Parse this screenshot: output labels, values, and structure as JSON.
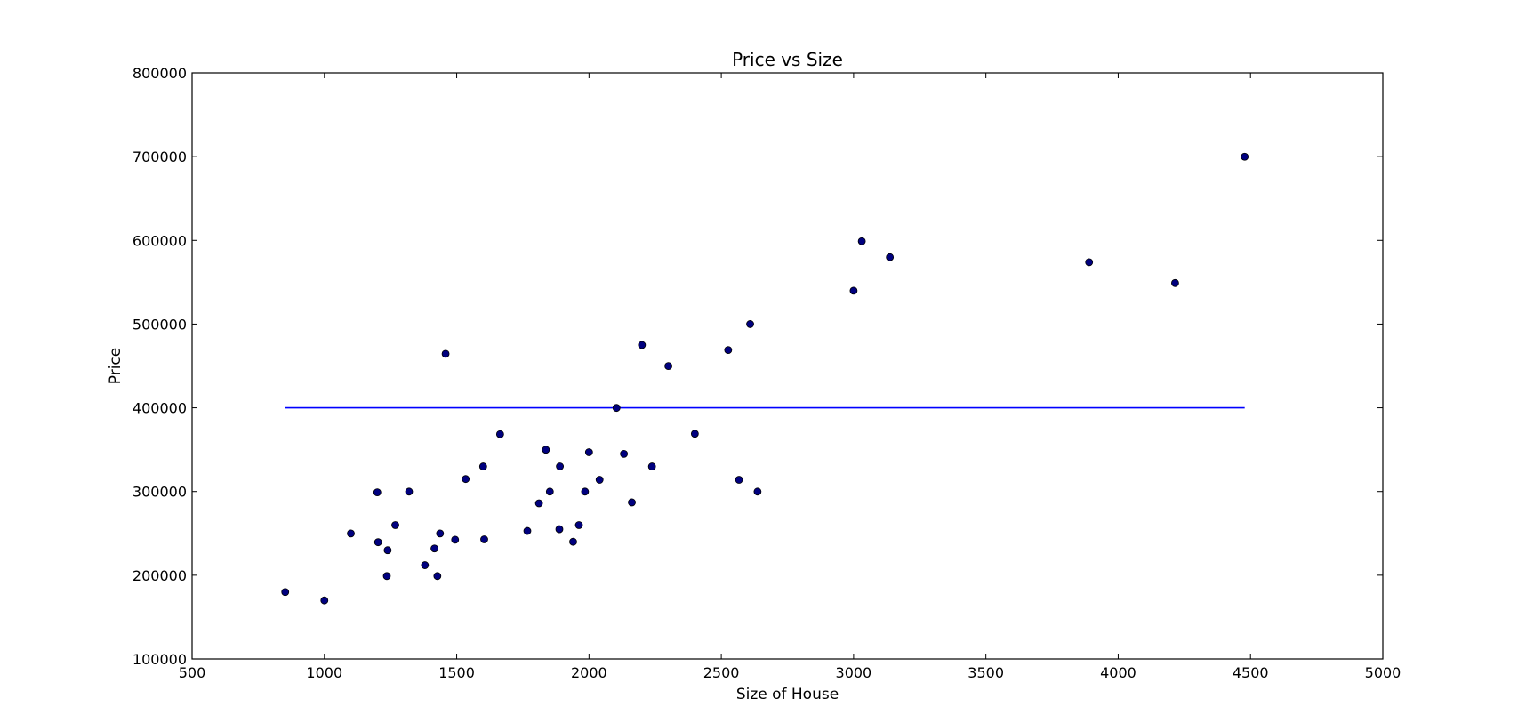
{
  "chart_data": {
    "type": "scatter",
    "title": "Price vs Size",
    "xlabel": "Size of House",
    "ylabel": "Price",
    "xlim": [
      500,
      5000
    ],
    "ylim": [
      100000,
      800000
    ],
    "xticks": [
      500,
      1000,
      1500,
      2000,
      2500,
      3000,
      3500,
      4000,
      4500,
      5000
    ],
    "yticks": [
      100000,
      200000,
      300000,
      400000,
      500000,
      600000,
      700000,
      800000
    ],
    "grid": false,
    "colors": {
      "points": "#00007f",
      "line": "#0000ff"
    },
    "series": [
      {
        "type": "scatter",
        "x": [
          852,
          1000,
          1100,
          1200,
          1203,
          1236,
          1239,
          1268,
          1320,
          1380,
          1416,
          1427,
          1437,
          1458,
          1494,
          1534,
          1600,
          1604,
          1664,
          1767,
          1811,
          1837,
          1852,
          1888,
          1890,
          1940,
          1962,
          1985,
          2000,
          2040,
          2104,
          2132,
          2162,
          2200,
          2238,
          2300,
          2400,
          2526,
          2567,
          2609,
          2637,
          3000,
          3031,
          3137,
          3890,
          4215,
          4478
        ],
        "y": [
          179900,
          169900,
          249900,
          299000,
          239500,
          199000,
          229900,
          259900,
          299900,
          212000,
          232000,
          198999,
          249900,
          464500,
          242500,
          314900,
          329900,
          242900,
          368500,
          252900,
          285900,
          349900,
          299900,
          255000,
          329999,
          240000,
          259900,
          299900,
          347000,
          314000,
          399900,
          345000,
          287000,
          475000,
          329900,
          449900,
          369000,
          469000,
          314000,
          499998,
          299900,
          539900,
          599000,
          579900,
          573900,
          549000,
          699900
        ]
      },
      {
        "type": "line",
        "x": [
          852,
          4478
        ],
        "y": [
          400000,
          400000
        ]
      }
    ]
  }
}
